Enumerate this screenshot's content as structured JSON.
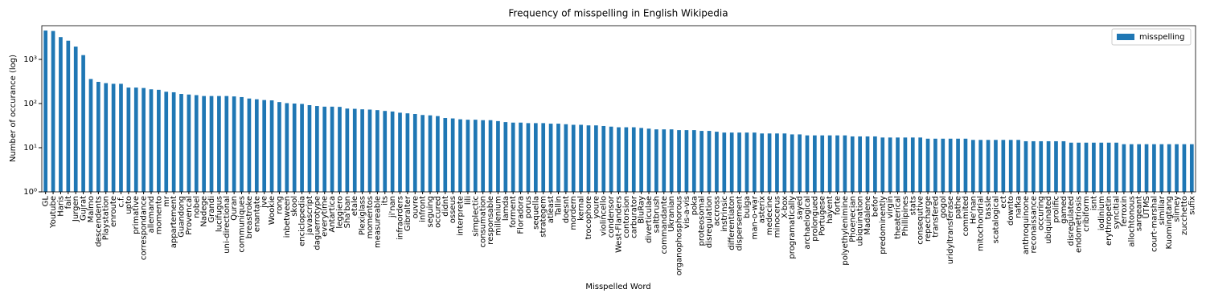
{
  "chart_data": {
    "type": "bar",
    "title": "Frequency of misspelling in English Wikipedia",
    "x_label": "Misspelled Word",
    "y_label": "Number of occurance (log)",
    "log_scale": true,
    "legend_position": "upper right",
    "ylim": [
      1,
      5800
    ],
    "yticks": [
      {
        "value": 1,
        "label": "10⁰"
      },
      {
        "value": 10,
        "label": "10¹"
      },
      {
        "value": 100,
        "label": "10²"
      },
      {
        "value": 1000,
        "label": "10³"
      }
    ],
    "categories": [
      "GL",
      "Youtube",
      "Haris",
      "fait",
      "Jurgen",
      "Gujrat",
      "Malmo",
      "descendents",
      "Playstation",
      "enroute",
      "c.f.",
      "upto",
      "primative",
      "correspondance",
      "allemand",
      "momento",
      "mr",
      "appartement",
      "Guandong",
      "Provencal",
      "nobel",
      "Nadege",
      "Grandi",
      "lucifugus",
      "uni-directional",
      "Quran",
      "communiques",
      "breastroke",
      "enantate",
      "jve",
      "Wookie",
      "rong",
      "inbetween",
      "skool",
      "enciclopedia",
      "javascript",
      "daguerrotype",
      "everytime",
      "Antartica",
      "leggiero",
      "Sha'ban",
      "etale",
      "Plexiglass",
      "momentos",
      "measureable",
      "its",
      "ji'nan",
      "infraorders",
      "Gibralter",
      "ouvre",
      "infront",
      "seguing",
      "occured",
      "didnt",
      "osseus",
      "interprete",
      "lili",
      "simplectic",
      "consumation",
      "responsable",
      "millenium",
      "lamda",
      "forment",
      "Floradora",
      "porus",
      "sequella",
      "strategem",
      "atleast",
      "Tallin",
      "doesnt",
      "mordern",
      "kernal",
      "trocophore",
      "youre",
      "violincello",
      "condensor",
      "West-Flanders",
      "contorsion",
      "carburator",
      "BluRay",
      "diverticulae",
      "saltbrush",
      "commandante",
      "Ukranian",
      "organophosphorous",
      "vis-a-vis",
      "poka",
      "proteosomal",
      "disregulation",
      "accross",
      "instrinsic",
      "differentiaton",
      "dispersement",
      "bulga",
      "man-o-war",
      "asterix",
      "medecine",
      "minocerus",
      "X-box",
      "programatically",
      "sayed",
      "archaelogical",
      "prolongued",
      "Portugese",
      "hayent",
      "forte",
      "polyethylenimine",
      "Phoenecian",
      "ubiquination",
      "Madalene",
      "befor",
      "predominently",
      "virgin",
      "theaterical",
      "Phillipines",
      "stats",
      "consequtive",
      "repecharge",
      "transfered",
      "gogol",
      "uridyltransferase",
      "pathe",
      "commited",
      "He'nan",
      "mitochondrial",
      "tassle",
      "scatalogical",
      "ect",
      "downto",
      "nafka",
      "anthroquinone",
      "reconaissance",
      "occuring",
      "ubiquinated",
      "prolific",
      "gamed",
      "disregulated",
      "endometriosis",
      "cribiform",
      "isnt",
      "iodinium",
      "erythropetin",
      "syncitial",
      "ferroxin",
      "allochtonous",
      "sargeant",
      "UTMS",
      "court-marshal",
      "similiar",
      "Kuomingtang",
      "slimey",
      "zucchetto",
      "sufix"
    ],
    "series": [
      {
        "name": "misspelling",
        "color": "#1f77b4",
        "values": [
          4500,
          4400,
          3200,
          2650,
          1950,
          1250,
          360,
          310,
          290,
          280,
          280,
          230,
          230,
          225,
          210,
          205,
          185,
          180,
          165,
          160,
          155,
          148,
          148,
          148,
          148,
          145,
          140,
          130,
          125,
          120,
          118,
          108,
          102,
          100,
          98,
          92,
          88,
          85,
          85,
          84,
          77,
          76,
          74,
          73,
          71,
          68,
          66,
          62,
          60,
          58,
          55,
          54,
          52,
          47,
          46,
          44,
          43,
          43,
          42,
          42,
          40,
          38,
          37,
          37,
          36,
          36,
          36,
          35,
          35,
          34,
          33,
          33,
          32,
          32,
          31,
          30,
          29,
          29,
          29,
          28,
          27,
          26,
          26,
          26,
          25,
          25,
          25,
          24,
          24,
          23,
          22,
          22,
          22,
          22,
          22,
          21,
          21,
          21,
          21,
          20,
          20,
          19,
          19,
          19,
          19,
          19,
          19,
          18,
          18,
          18,
          18,
          17,
          17,
          17,
          17,
          17,
          17,
          16,
          16,
          16,
          16,
          16,
          16,
          15,
          15,
          15,
          15,
          15,
          15,
          15,
          14,
          14,
          14,
          14,
          14,
          14,
          13,
          13,
          13,
          13,
          13,
          13,
          13,
          12,
          12,
          12,
          12,
          12,
          12,
          12,
          12,
          12,
          12
        ]
      }
    ]
  }
}
